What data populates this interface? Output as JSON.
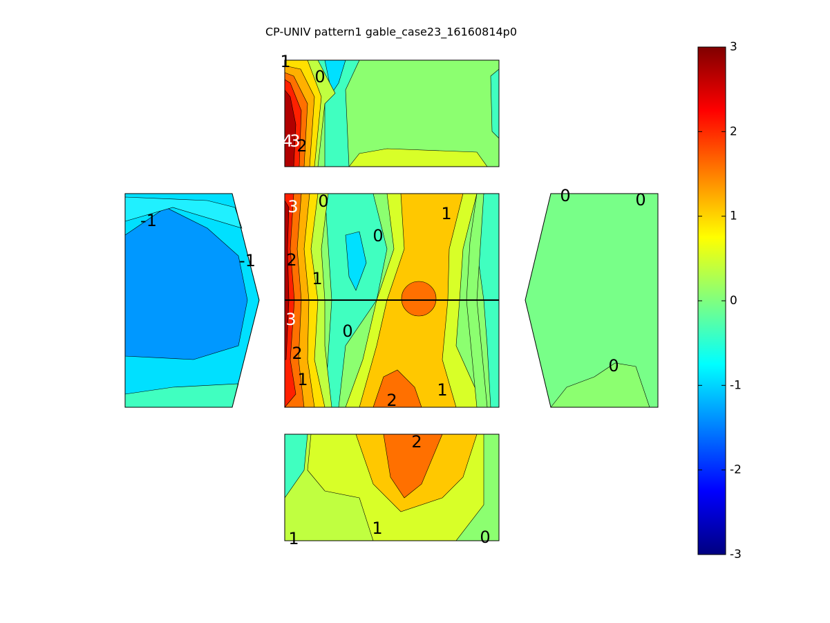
{
  "chart_data": {
    "type": "contour",
    "title": "CP-UNIV pattern1 gable_case23_16160814p0",
    "colorbar": {
      "clim": [
        -3,
        3
      ],
      "ticks": [
        -3,
        -2,
        -1,
        0,
        1,
        2,
        3
      ],
      "colormap": "jet"
    },
    "contour_labels": [
      1,
      0,
      4,
      3,
      2,
      3,
      0,
      1,
      0,
      2,
      1,
      3,
      0,
      2,
      1,
      2,
      1,
      -1,
      -1,
      0,
      0,
      0,
      2,
      1,
      1,
      0
    ]
  }
}
